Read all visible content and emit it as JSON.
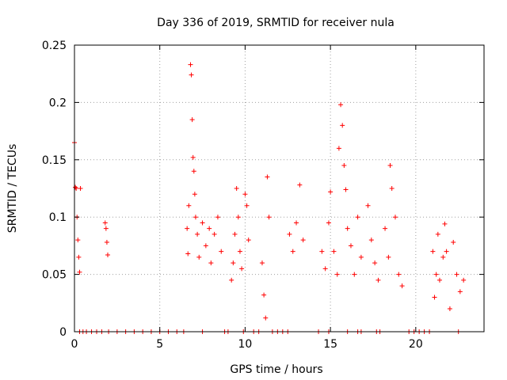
{
  "chart_data": {
    "type": "scatter",
    "title": "Day 336 of 2019, SRMTID for receiver nula",
    "xlabel": "GPS time / hours",
    "ylabel": "SRMTID / TECUs",
    "xlim": [
      0,
      24
    ],
    "ylim": [
      0,
      0.25
    ],
    "xticks": [
      0,
      5,
      10,
      15,
      20
    ],
    "xtick_labels": [
      "0",
      "5",
      "10",
      "15",
      "20"
    ],
    "yticks": [
      0,
      0.05,
      0.1,
      0.15,
      0.2,
      0.25
    ],
    "ytick_labels": [
      "0",
      "0.05",
      "0.1",
      "0.15",
      "0.2",
      "0.25"
    ],
    "grid": true,
    "marker": "plus",
    "series": [
      {
        "name": "SRMTID",
        "color": "#ff0000",
        "x": [
          0.0,
          0.05,
          0.1,
          0.15,
          0.2,
          0.25,
          0.3,
          0.35,
          1.8,
          1.85,
          1.9,
          1.95,
          6.6,
          6.65,
          6.7,
          6.8,
          6.85,
          6.9,
          6.95,
          7.0,
          7.05,
          7.1,
          7.2,
          7.3,
          7.5,
          7.7,
          7.9,
          8.0,
          8.2,
          8.4,
          8.6,
          9.2,
          9.3,
          9.4,
          9.5,
          9.6,
          9.7,
          9.8,
          10.0,
          10.1,
          10.2,
          11.0,
          11.1,
          11.2,
          11.3,
          11.4,
          12.6,
          12.8,
          13.0,
          13.2,
          13.4,
          14.5,
          14.7,
          14.9,
          15.0,
          15.2,
          15.4,
          15.5,
          15.6,
          15.7,
          15.8,
          15.9,
          16.0,
          16.2,
          16.4,
          16.6,
          16.8,
          17.2,
          17.4,
          17.6,
          17.8,
          18.2,
          18.4,
          18.5,
          18.6,
          18.8,
          19.0,
          19.2,
          21.0,
          21.1,
          21.2,
          21.3,
          21.4,
          21.6,
          21.7,
          21.8,
          22.0,
          22.2,
          22.4,
          22.6,
          22.8,
          0.3,
          0.5,
          0.7,
          1.0,
          1.3,
          1.6,
          2.0,
          2.5,
          3.0,
          3.5,
          4.0,
          4.5,
          5.0,
          5.5,
          6.0,
          6.4,
          7.5,
          8.8,
          9.0,
          9.9,
          10.5,
          10.8,
          11.6,
          11.9,
          12.2,
          12.5,
          14.3,
          14.9,
          16.0,
          16.6,
          16.8,
          17.7,
          17.9,
          19.6,
          19.9,
          20.2,
          20.5,
          20.8,
          22.5
        ],
        "y": [
          0.165,
          0.126,
          0.125,
          0.1,
          0.08,
          0.065,
          0.052,
          0.125,
          0.095,
          0.09,
          0.078,
          0.067,
          0.09,
          0.068,
          0.11,
          0.233,
          0.224,
          0.185,
          0.152,
          0.14,
          0.12,
          0.1,
          0.085,
          0.065,
          0.095,
          0.075,
          0.09,
          0.06,
          0.085,
          0.1,
          0.07,
          0.045,
          0.06,
          0.085,
          0.125,
          0.1,
          0.07,
          0.055,
          0.12,
          0.11,
          0.08,
          0.06,
          0.032,
          0.012,
          0.135,
          0.1,
          0.085,
          0.07,
          0.095,
          0.128,
          0.08,
          0.07,
          0.055,
          0.095,
          0.122,
          0.07,
          0.05,
          0.16,
          0.198,
          0.18,
          0.145,
          0.124,
          0.09,
          0.075,
          0.05,
          0.1,
          0.065,
          0.11,
          0.08,
          0.06,
          0.045,
          0.09,
          0.065,
          0.145,
          0.125,
          0.1,
          0.05,
          0.04,
          0.07,
          0.03,
          0.05,
          0.085,
          0.045,
          0.065,
          0.094,
          0.07,
          0.02,
          0.078,
          0.05,
          0.035,
          0.045,
          0.0,
          0.0,
          0.0,
          0.0,
          0.0,
          0.0,
          0.0,
          0.0,
          0.0,
          0.0,
          0.0,
          0.0,
          0.0,
          0.0,
          0.0,
          0.0,
          0.0,
          0.0,
          0.0,
          0.0,
          0.0,
          0.0,
          0.0,
          0.0,
          0.0,
          0.0,
          0.0,
          0.0,
          0.0,
          0.0,
          0.0,
          0.0,
          0.0,
          0.0,
          0.0,
          0.0,
          0.0,
          0.0,
          0.0
        ]
      }
    ]
  }
}
